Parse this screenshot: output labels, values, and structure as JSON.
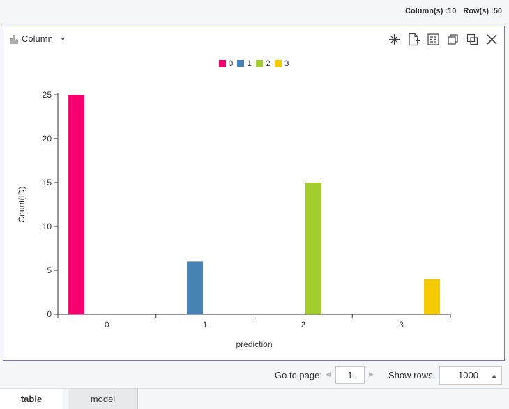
{
  "header": {
    "columns_label": "Column(s) :10",
    "rows_label": "Row(s) :50"
  },
  "panel": {
    "chart_type_label": "Column",
    "chart_type_icon": "bar-chart-icon",
    "tools": [
      {
        "name": "scatter-select-icon"
      },
      {
        "name": "export-file-icon"
      },
      {
        "name": "settings-panel-icon"
      },
      {
        "name": "copy-icon"
      },
      {
        "name": "duplicate-icon"
      },
      {
        "name": "close-icon"
      }
    ]
  },
  "chart_data": {
    "type": "bar",
    "categories": [
      "0",
      "1",
      "2",
      "3"
    ],
    "series": [
      {
        "name": "0",
        "color": "#f5006e",
        "values": [
          25,
          0,
          0,
          0
        ]
      },
      {
        "name": "1",
        "color": "#4682b4",
        "values": [
          0,
          6,
          0,
          0
        ]
      },
      {
        "name": "2",
        "color": "#a2cd2c",
        "values": [
          0,
          0,
          15,
          0
        ]
      },
      {
        "name": "3",
        "color": "#f5cb00",
        "values": [
          0,
          0,
          0,
          4
        ]
      }
    ],
    "xlabel": "prediction",
    "ylabel": "Count(ID)",
    "ylim": [
      0,
      25
    ],
    "yticks": [
      0,
      5,
      10,
      15,
      20,
      25
    ],
    "legend_position": "top-center",
    "grid": false
  },
  "pager": {
    "goto_label": "Go to page:",
    "page_value": "1",
    "rows_label": "Show rows:",
    "rows_value": "1000"
  },
  "tabs": [
    {
      "label": "table",
      "active": true
    },
    {
      "label": "model",
      "active": false
    }
  ]
}
